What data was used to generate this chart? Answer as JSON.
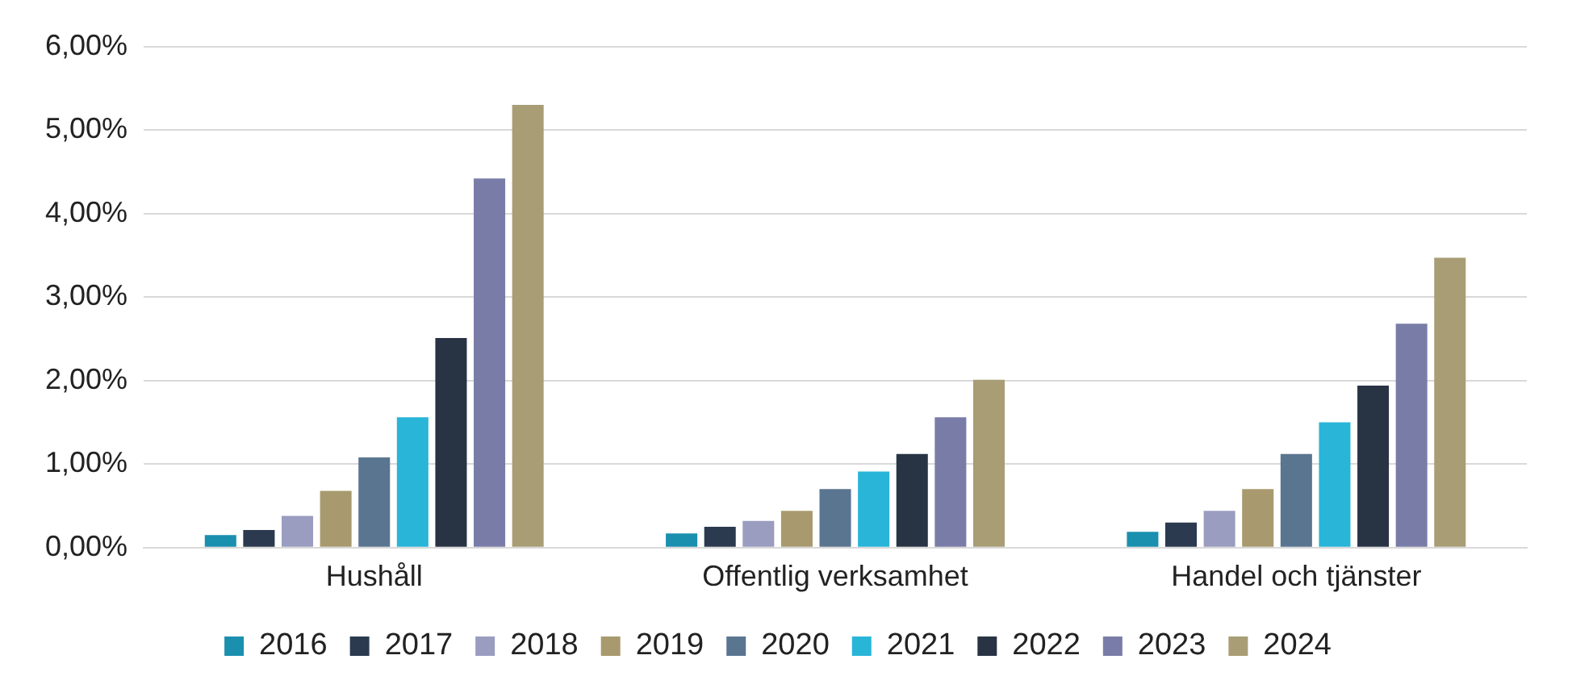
{
  "chart_data": {
    "type": "bar",
    "categories": [
      "Hushåll",
      "Offentlig verksamhet",
      "Handel och tjänster"
    ],
    "series": [
      {
        "name": "2016",
        "color": "#1b8fae",
        "values": [
          0.15,
          0.17,
          0.19
        ]
      },
      {
        "name": "2017",
        "color": "#2b3a4e",
        "values": [
          0.21,
          0.25,
          0.3
        ]
      },
      {
        "name": "2018",
        "color": "#9a9cc0",
        "values": [
          0.38,
          0.32,
          0.44
        ]
      },
      {
        "name": "2019",
        "color": "#a89a6e",
        "values": [
          0.68,
          0.44,
          0.7
        ]
      },
      {
        "name": "2020",
        "color": "#5a7590",
        "values": [
          1.08,
          0.7,
          1.12
        ]
      },
      {
        "name": "2021",
        "color": "#29b5d8",
        "values": [
          1.56,
          0.91,
          1.5
        ]
      },
      {
        "name": "2022",
        "color": "#283444",
        "values": [
          2.51,
          1.12,
          1.94
        ]
      },
      {
        "name": "2023",
        "color": "#7a7ca8",
        "values": [
          4.42,
          1.56,
          2.68
        ]
      },
      {
        "name": "2024",
        "color": "#a89d74",
        "values": [
          5.3,
          2.01,
          3.47
        ]
      }
    ],
    "ylim": [
      0,
      6
    ],
    "yticks": [
      {
        "value": 0,
        "label": "0,00%"
      },
      {
        "value": 1,
        "label": "1,00%"
      },
      {
        "value": 2,
        "label": "2,00%"
      },
      {
        "value": 3,
        "label": "3,00%"
      },
      {
        "value": 4,
        "label": "4,00%"
      },
      {
        "value": 5,
        "label": "5,00%"
      },
      {
        "value": 6,
        "label": "6,00%"
      }
    ],
    "grid": "y",
    "legend": "bottom"
  }
}
